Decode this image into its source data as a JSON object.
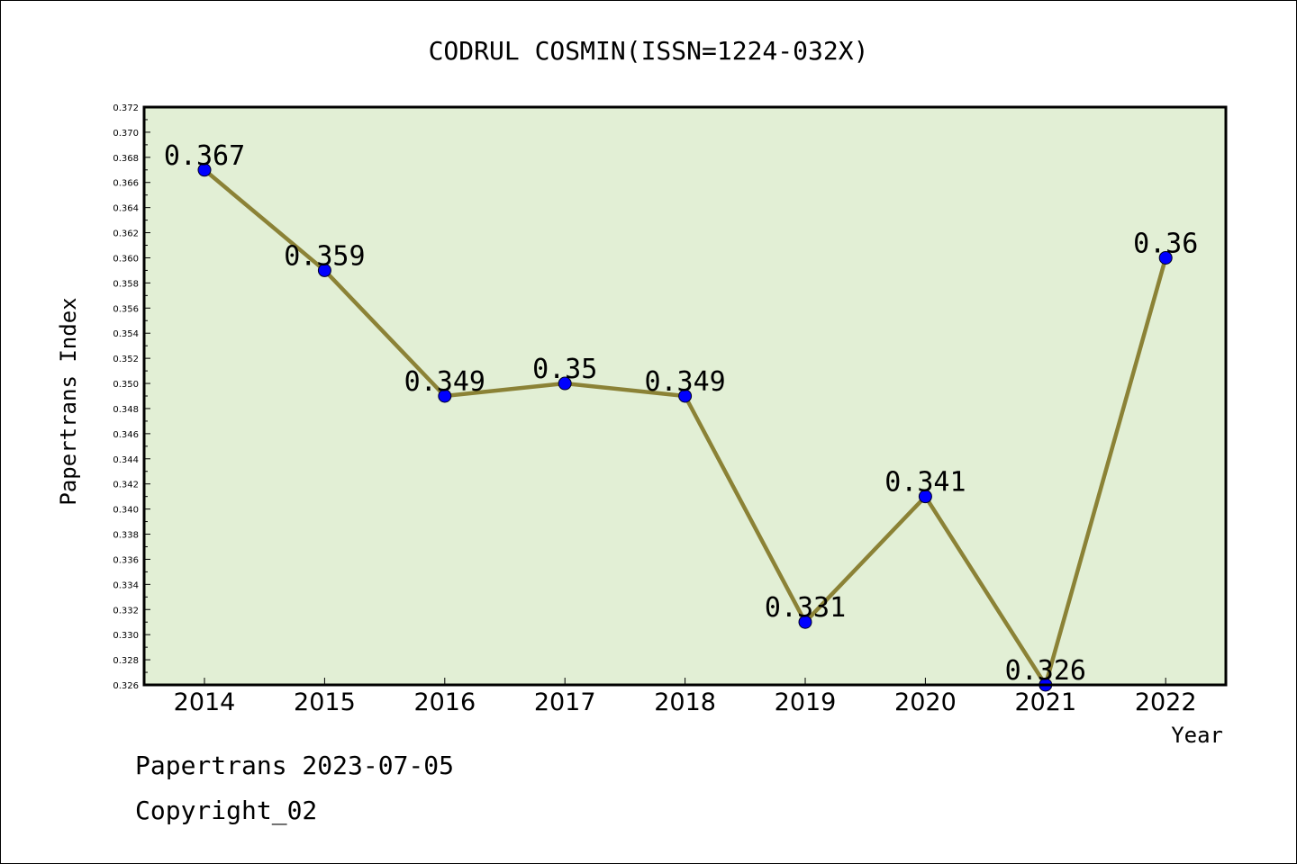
{
  "chart_data": {
    "type": "line",
    "title": "CODRUL COSMIN(ISSN=1224-032X)",
    "xlabel": "Year",
    "ylabel": "Papertrans Index",
    "categories": [
      "2014",
      "2015",
      "2016",
      "2017",
      "2018",
      "2019",
      "2020",
      "2021",
      "2022"
    ],
    "series": [
      {
        "values": [
          0.367,
          0.359,
          0.349,
          0.35,
          0.349,
          0.331,
          0.341,
          0.326,
          0.36
        ],
        "labels": [
          "0.367",
          "0.359",
          "0.349",
          "0.35",
          "0.349",
          "0.331",
          "0.341",
          "0.326",
          "0.36"
        ]
      }
    ],
    "ylim": [
      0.326,
      0.372
    ],
    "yticks": [
      "0.326",
      "0.328",
      "0.330",
      "0.332",
      "0.334",
      "0.336",
      "0.338",
      "0.340",
      "0.342",
      "0.344",
      "0.346",
      "0.348",
      "0.350",
      "0.352",
      "0.354",
      "0.356",
      "0.358",
      "0.360",
      "0.362",
      "0.364",
      "0.366",
      "0.368",
      "0.370",
      "0.372"
    ],
    "grid": false,
    "colors": {
      "plot_background": "#e2efd5",
      "line": "#8b8236",
      "marker": "#0000ff"
    }
  },
  "footer": {
    "date_line": "Papertrans 2023-07-05",
    "copyright": "Copyright_02"
  }
}
